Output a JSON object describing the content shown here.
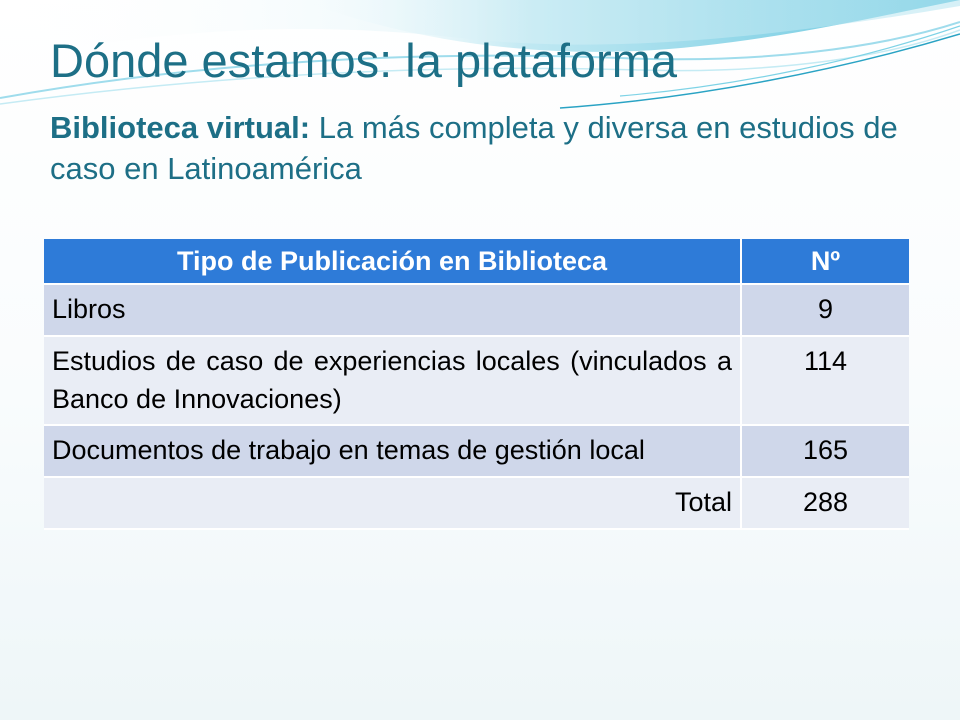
{
  "slide": {
    "title": "Dónde estamos: la plataforma",
    "subtitle_strong": "Biblioteca virtual:",
    "subtitle_rest": " La más completa y diversa en estudios de caso en Latinoamérica"
  },
  "table": {
    "headers": [
      "Tipo de Publicación en Biblioteca",
      "Nº"
    ],
    "rows": [
      {
        "type": "Libros",
        "count": "9"
      },
      {
        "type": "Estudios de caso de experiencias locales (vinculados a Banco de Innovaciones)",
        "count": "114"
      },
      {
        "type": "Documentos de trabajo en temas de gestión local",
        "count": "165"
      }
    ],
    "total_label": "Total",
    "total_value": "288"
  },
  "theme": {
    "title_color": "#1d6f86",
    "header_fill": "#2e7bd8",
    "row_fill_dark": "#cfd7ea",
    "row_fill_light": "#e9edf5",
    "wave_colors": [
      "#7fd3e6",
      "#aee3ef",
      "#2aa3c4"
    ]
  }
}
